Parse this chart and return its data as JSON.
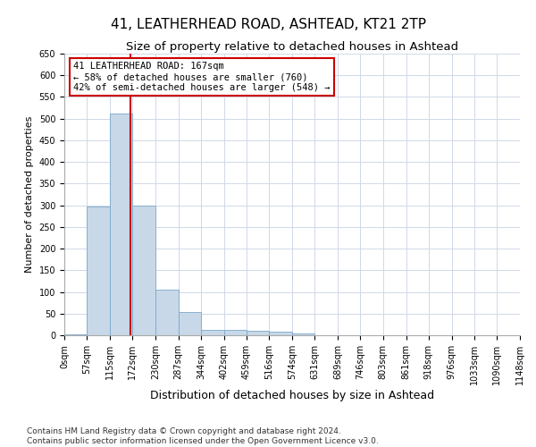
{
  "title1": "41, LEATHERHEAD ROAD, ASHTEAD, KT21 2TP",
  "title2": "Size of property relative to detached houses in Ashtead",
  "xlabel": "Distribution of detached houses by size in Ashtead",
  "ylabel": "Number of detached properties",
  "bin_edges": [
    0,
    57,
    115,
    172,
    230,
    287,
    344,
    402,
    459,
    516,
    574,
    631,
    689,
    746,
    803,
    861,
    918,
    976,
    1033,
    1090,
    1148
  ],
  "bar_heights": [
    3,
    298,
    511,
    300,
    105,
    53,
    12,
    12,
    11,
    8,
    5,
    1,
    0,
    1,
    0,
    0,
    0,
    1,
    0,
    1
  ],
  "bar_color": "#c8d8e8",
  "bar_edgecolor": "#7aa8cc",
  "grid_color": "#d0d8e8",
  "subject_size": 167,
  "subject_line_color": "#cc0000",
  "annotation_text": "41 LEATHERHEAD ROAD: 167sqm\n← 58% of detached houses are smaller (760)\n42% of semi-detached houses are larger (548) →",
  "annotation_box_color": "#ffffff",
  "annotation_box_edgecolor": "#cc0000",
  "ylim": [
    0,
    650
  ],
  "yticks": [
    0,
    50,
    100,
    150,
    200,
    250,
    300,
    350,
    400,
    450,
    500,
    550,
    600,
    650
  ],
  "footnote1": "Contains HM Land Registry data © Crown copyright and database right 2024.",
  "footnote2": "Contains public sector information licensed under the Open Government Licence v3.0.",
  "title1_fontsize": 11,
  "title2_fontsize": 9.5,
  "xlabel_fontsize": 9,
  "ylabel_fontsize": 8,
  "tick_fontsize": 7,
  "annotation_fontsize": 7.5,
  "footnote_fontsize": 6.5
}
